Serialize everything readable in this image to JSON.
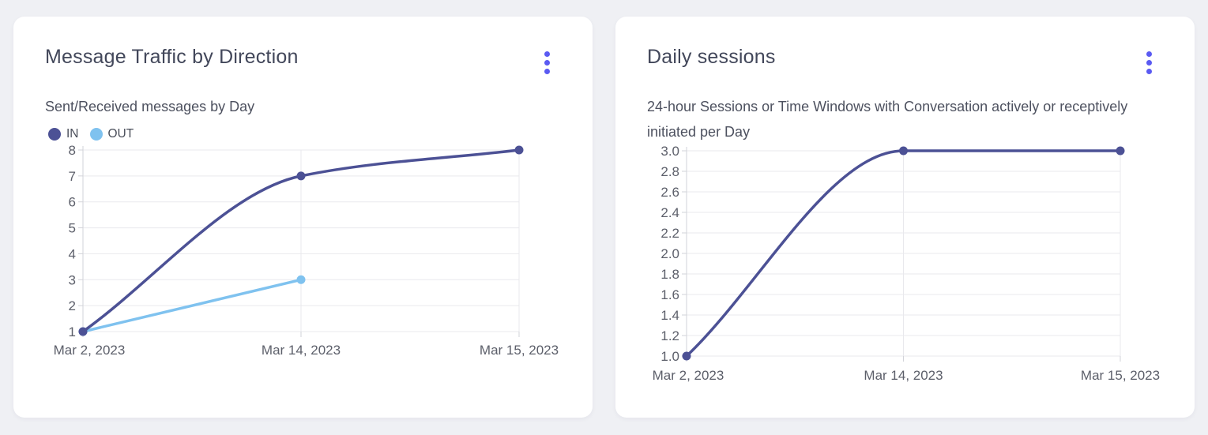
{
  "page": {
    "background_color": "#eff0f4",
    "card_background": "#ffffff",
    "accent_color": "#5a5af2",
    "title_color": "#42475a",
    "text_color": "#4d515f"
  },
  "cards": [
    {
      "title": "Message Traffic by Direction",
      "subtitle": "Sent/Received messages by Day",
      "menu_icon": "vertical-kebab-menu"
    },
    {
      "title": "Daily sessions",
      "subtitle": "24-hour Sessions or Time Windows with Conversation actively or receptively initiated per Day",
      "menu_icon": "vertical-kebab-menu"
    }
  ],
  "chart_data": [
    {
      "type": "line",
      "title": "Message Traffic by Direction",
      "subtitle": "Sent/Received messages by Day",
      "categories": [
        "Mar 2, 2023",
        "Mar 14, 2023",
        "Mar 15, 2023"
      ],
      "series": [
        {
          "name": "IN",
          "values": [
            1,
            7,
            8
          ],
          "color": "#4c5195"
        },
        {
          "name": "OUT",
          "values": [
            1,
            3,
            null
          ],
          "color": "#7fc2ef"
        }
      ],
      "xlabel": "",
      "ylabel": "",
      "ylim": [
        1,
        8
      ],
      "ytick_step": 1,
      "ytick_format": "integer",
      "curve": "monotone",
      "grid": true,
      "legend_position": "top-left",
      "grid_color": "#e9e9ed",
      "axis_color": "#d2d3d9",
      "tick_label_color": "#5c5f6a"
    },
    {
      "type": "line",
      "title": "Daily sessions",
      "subtitle": "24-hour Sessions or Time Windows with Conversation actively or receptively initiated per Day",
      "categories": [
        "Mar 2, 2023",
        "Mar 14, 2023",
        "Mar 15, 2023"
      ],
      "series": [
        {
          "name": "Daily sessions",
          "values": [
            1.0,
            3.0,
            3.0
          ],
          "color": "#4c5195"
        }
      ],
      "xlabel": "",
      "ylabel": "",
      "ylim": [
        1.0,
        3.0
      ],
      "ytick_step": 0.2,
      "ytick_format": "one-decimal",
      "curve": "monotone",
      "grid": true,
      "legend_position": "none",
      "grid_color": "#e9e9ed",
      "axis_color": "#d2d3d9",
      "tick_label_color": "#5c5f6a"
    }
  ]
}
